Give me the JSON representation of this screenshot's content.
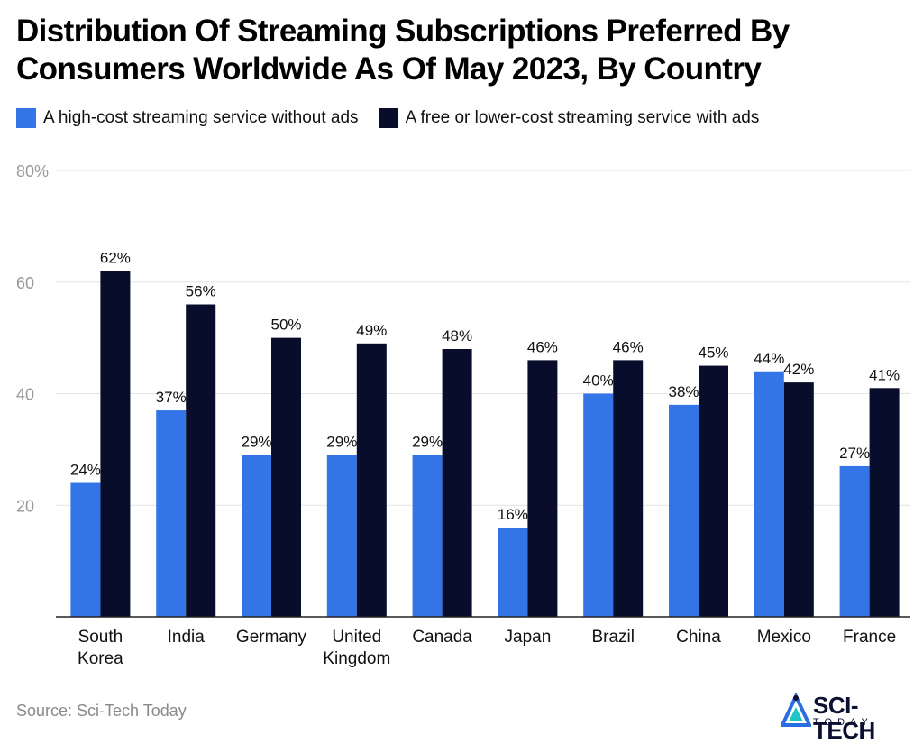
{
  "title": "Distribution Of Streaming Subscriptions Preferred By Consumers Worldwide As Of May 2023, By Country",
  "source": "Source: Sci-Tech Today",
  "logo": {
    "main": "SCI-TECH",
    "sub": "TODAY"
  },
  "colors": {
    "series1": "#3374e6",
    "series2": "#070d2b",
    "grid": "#e3e3e3",
    "axis": "#222222",
    "tick": "#999999"
  },
  "chart_data": {
    "type": "bar",
    "categories": [
      "South Korea",
      "India",
      "Germany",
      "United Kingdom",
      "Canada",
      "Japan",
      "Brazil",
      "China",
      "Mexico",
      "France"
    ],
    "category_lines": [
      [
        "South",
        "Korea"
      ],
      [
        "India"
      ],
      [
        "Germany"
      ],
      [
        "United",
        "Kingdom"
      ],
      [
        "Canada"
      ],
      [
        "Japan"
      ],
      [
        "Brazil"
      ],
      [
        "China"
      ],
      [
        "Mexico"
      ],
      [
        "France"
      ]
    ],
    "series": [
      {
        "name": "A high-cost streaming service without ads",
        "values": [
          24,
          37,
          29,
          29,
          29,
          16,
          40,
          38,
          44,
          27
        ],
        "labels": [
          "24%",
          "37%",
          "29%",
          "29%",
          "29%",
          "16%",
          "40%",
          "38%",
          "44%",
          "27%"
        ]
      },
      {
        "name": "A free or lower-cost streaming service with ads",
        "values": [
          62,
          56,
          50,
          49,
          48,
          46,
          46,
          45,
          42,
          41
        ],
        "labels": [
          "62%",
          "56%",
          "50%",
          "49%",
          "48%",
          "46%",
          "46%",
          "45%",
          "42%",
          "41%"
        ]
      }
    ],
    "ylim": [
      0,
      80
    ],
    "yticks": [
      20,
      40,
      60,
      80
    ],
    "ytick_labels": [
      "20",
      "40",
      "60",
      "80%"
    ],
    "grid": true,
    "legend": "top-left",
    "xlabel": "",
    "ylabel": ""
  }
}
